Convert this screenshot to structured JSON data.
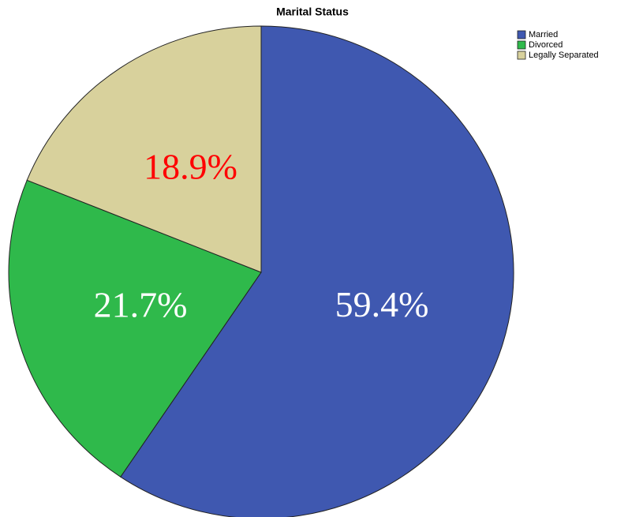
{
  "chart_data": {
    "type": "pie",
    "title": "Marital Status",
    "categories": [
      "Married",
      "Divorced",
      "Legally Separated"
    ],
    "values": [
      59.4,
      21.7,
      18.9
    ],
    "value_labels": [
      "59.4%",
      "21.7%",
      "18.9%"
    ],
    "colors": [
      "#3f58b0",
      "#2fb94b",
      "#d8d19c"
    ],
    "label_colors": [
      "#ffffff",
      "#ffffff",
      "#ff0000"
    ],
    "legend": "upper right"
  }
}
